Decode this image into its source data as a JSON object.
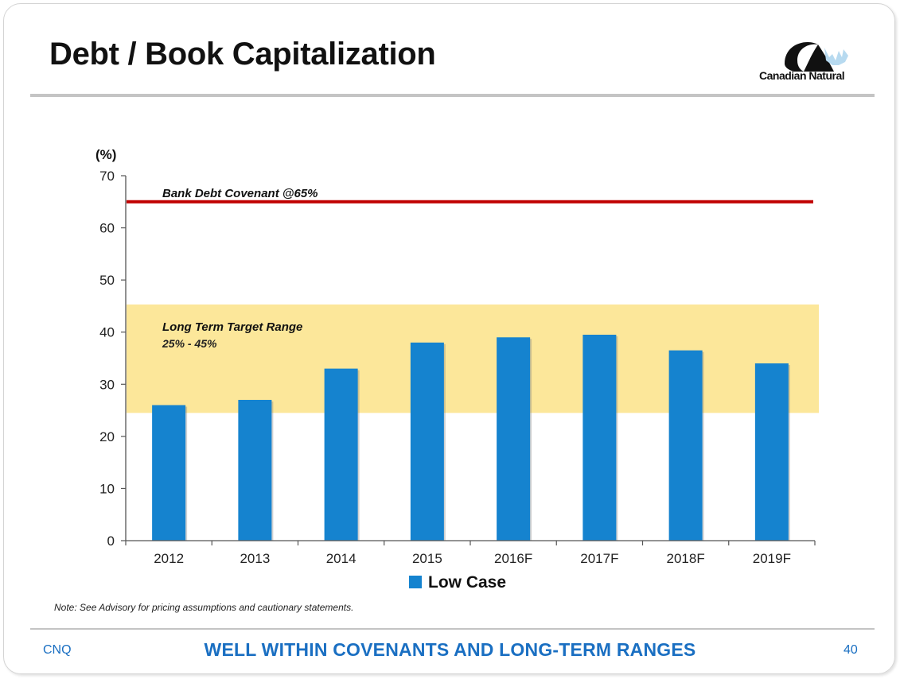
{
  "slide": {
    "title": "Debt / Book Capitalization",
    "logo_text": "Canadian Natural",
    "note": "Note:  See Advisory for pricing assumptions and cautionary statements.",
    "footer_left": "CNQ",
    "footer_center": "WELL WITHIN COVENANTS AND LONG-TERM RANGES",
    "page_number": "40"
  },
  "chart_data": {
    "type": "bar",
    "title": "",
    "ylabel": "(%)",
    "xlabel": "",
    "ylim": [
      0,
      70
    ],
    "yticks": [
      0,
      10,
      20,
      30,
      40,
      50,
      60,
      70
    ],
    "categories": [
      "2012",
      "2013",
      "2014",
      "2015",
      "2016F",
      "2017F",
      "2018F",
      "2019F"
    ],
    "series": [
      {
        "name": "Low Case",
        "values": [
          26,
          27,
          33,
          38,
          39,
          39.5,
          36.5,
          34
        ]
      }
    ],
    "reference_line": {
      "label": "Bank Debt Covenant @65%",
      "value": 65
    },
    "target_band": {
      "label": "Long Term Target Range",
      "range_label": "25% - 45%",
      "min": 24.5,
      "max": 45.3
    },
    "legend_position": "bottom",
    "grid": false,
    "colors": {
      "bar": "#1583cf",
      "covenant_line": "#c00000",
      "band": "#fce79a"
    }
  }
}
